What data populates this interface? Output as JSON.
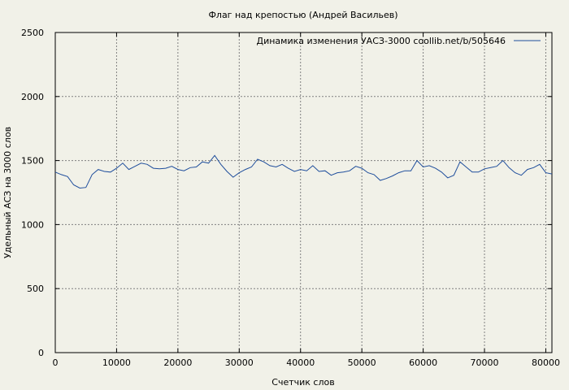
{
  "chart_data": {
    "type": "line",
    "title": "Флаг над крепостью (Андрей Васильев)",
    "xlabel": "Счетчик слов",
    "ylabel": "Удельный АСЗ на 3000 слов",
    "xlim": [
      0,
      81000
    ],
    "ylim": [
      0,
      2500
    ],
    "x_ticks": [
      0,
      10000,
      20000,
      30000,
      40000,
      50000,
      60000,
      70000,
      80000
    ],
    "y_ticks": [
      0,
      500,
      1000,
      1500,
      2000,
      2500
    ],
    "grid": true,
    "legend_position": "top-right",
    "series": [
      {
        "name": "Динамика изменения УАСЗ-3000  coollib.net/b/505646",
        "color": "#1f4e9c",
        "x": [
          0,
          1000,
          2000,
          3000,
          4000,
          5000,
          6000,
          7000,
          8000,
          9000,
          10000,
          11000,
          12000,
          13000,
          14000,
          15000,
          16000,
          17000,
          18000,
          19000,
          20000,
          21000,
          22000,
          23000,
          24000,
          25000,
          26000,
          27000,
          28000,
          29000,
          30000,
          31000,
          32000,
          33000,
          34000,
          35000,
          36000,
          37000,
          38000,
          39000,
          40000,
          41000,
          42000,
          43000,
          44000,
          45000,
          46000,
          47000,
          48000,
          49000,
          50000,
          51000,
          52000,
          53000,
          54000,
          55000,
          56000,
          57000,
          58000,
          59000,
          60000,
          61000,
          62000,
          63000,
          64000,
          65000,
          66000,
          67000,
          68000,
          69000,
          70000,
          71000,
          72000,
          73000,
          74000,
          75000,
          76000,
          77000,
          78000,
          79000,
          80000,
          81000
        ],
        "y": [
          1410,
          1390,
          1375,
          1310,
          1285,
          1290,
          1390,
          1430,
          1415,
          1410,
          1440,
          1480,
          1430,
          1455,
          1480,
          1470,
          1440,
          1435,
          1440,
          1455,
          1430,
          1420,
          1445,
          1450,
          1490,
          1480,
          1540,
          1470,
          1415,
          1370,
          1405,
          1430,
          1450,
          1510,
          1490,
          1460,
          1450,
          1470,
          1440,
          1415,
          1430,
          1420,
          1460,
          1415,
          1420,
          1385,
          1405,
          1410,
          1420,
          1455,
          1440,
          1405,
          1390,
          1345,
          1360,
          1380,
          1405,
          1420,
          1420,
          1500,
          1450,
          1460,
          1440,
          1410,
          1365,
          1385,
          1490,
          1450,
          1410,
          1410,
          1435,
          1445,
          1455,
          1500,
          1445,
          1405,
          1385,
          1430,
          1445,
          1470,
          1405,
          1395
        ]
      }
    ]
  }
}
